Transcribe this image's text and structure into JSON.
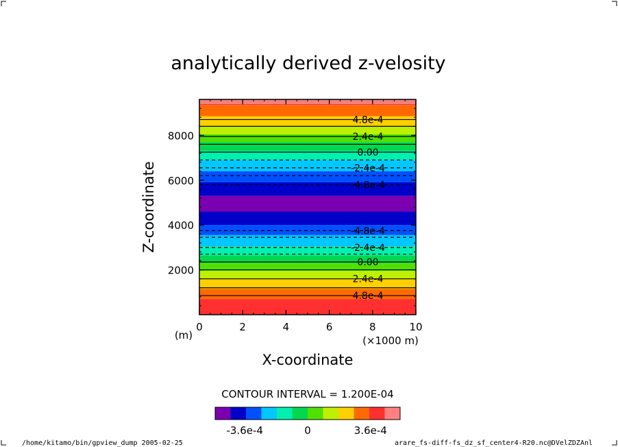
{
  "chart_data": {
    "type": "heatmap",
    "title": "analytically derived z-velosity",
    "xlabel": "X-coordinate",
    "ylabel": "Z-coordinate",
    "x_unit_left": "(m)",
    "x_unit_right": "(×1000 m)",
    "xlim": [
      0,
      10
    ],
    "ylim": [
      0,
      9600
    ],
    "x_ticks": [
      0,
      2,
      4,
      6,
      8,
      10
    ],
    "y_ticks": [
      2000,
      4000,
      6000,
      8000
    ],
    "contour_interval_text": "CONTOUR INTERVAL = 1.200E-04",
    "bands": [
      {
        "z0": 0,
        "z1": 700,
        "color": "#ff3030"
      },
      {
        "z0": 700,
        "z1": 1150,
        "color": "#ff6a00"
      },
      {
        "z0": 1150,
        "z1": 1600,
        "color": "#ffd000"
      },
      {
        "z0": 1600,
        "z1": 1950,
        "color": "#bff000"
      },
      {
        "z0": 1950,
        "z1": 2300,
        "color": "#50e000"
      },
      {
        "z0": 2300,
        "z1": 2650,
        "color": "#00d850"
      },
      {
        "z0": 2650,
        "z1": 3050,
        "color": "#00f0b0"
      },
      {
        "z0": 3050,
        "z1": 3550,
        "color": "#00c8ff"
      },
      {
        "z0": 3550,
        "z1": 4000,
        "color": "#0050ff"
      },
      {
        "z0": 4000,
        "z1": 4600,
        "color": "#0000c8"
      },
      {
        "z0": 4600,
        "z1": 5300,
        "color": "#7a00b0"
      },
      {
        "z0": 5300,
        "z1": 5900,
        "color": "#0000c8"
      },
      {
        "z0": 5900,
        "z1": 6400,
        "color": "#0050ff"
      },
      {
        "z0": 6400,
        "z1": 6900,
        "color": "#00c8ff"
      },
      {
        "z0": 6900,
        "z1": 7300,
        "color": "#00f0b0"
      },
      {
        "z0": 7300,
        "z1": 7700,
        "color": "#00d850"
      },
      {
        "z0": 7700,
        "z1": 8050,
        "color": "#50e000"
      },
      {
        "z0": 8050,
        "z1": 8400,
        "color": "#bff000"
      },
      {
        "z0": 8400,
        "z1": 8850,
        "color": "#ffd000"
      },
      {
        "z0": 8850,
        "z1": 9350,
        "color": "#ff6a00"
      },
      {
        "z0": 9350,
        "z1": 9600,
        "color": "#ff3030"
      }
    ],
    "top_strip_color": "#f08080",
    "contours": [
      {
        "z": 850,
        "dashed": false,
        "label": "4.8e-4"
      },
      {
        "z": 1200,
        "dashed": false,
        "label": ""
      },
      {
        "z": 1600,
        "dashed": false,
        "label": "2.4e-4"
      },
      {
        "z": 2000,
        "dashed": false,
        "label": ""
      },
      {
        "z": 2350,
        "dashed": false,
        "label": "0.00"
      },
      {
        "z": 2700,
        "dashed": true,
        "label": ""
      },
      {
        "z": 3000,
        "dashed": true,
        "label": "-2.4e-4"
      },
      {
        "z": 3450,
        "dashed": true,
        "label": ""
      },
      {
        "z": 3750,
        "dashed": true,
        "label": "-4.8e-4"
      },
      {
        "z": 5800,
        "dashed": true,
        "label": "-4.8e-4"
      },
      {
        "z": 6200,
        "dashed": true,
        "label": ""
      },
      {
        "z": 6550,
        "dashed": true,
        "label": "-2.4e-4"
      },
      {
        "z": 6900,
        "dashed": true,
        "label": ""
      },
      {
        "z": 7250,
        "dashed": false,
        "label": "0.00"
      },
      {
        "z": 7600,
        "dashed": false,
        "label": ""
      },
      {
        "z": 7950,
        "dashed": false,
        "label": "2.4e-4"
      },
      {
        "z": 8400,
        "dashed": false,
        "label": ""
      },
      {
        "z": 8700,
        "dashed": false,
        "label": "4.8e-4"
      }
    ],
    "colorbar": {
      "colors": [
        "#7a00b0",
        "#0000c8",
        "#0050ff",
        "#00c8ff",
        "#00f0b0",
        "#00d850",
        "#50e000",
        "#bff000",
        "#ffd000",
        "#ff6a00",
        "#ff3030",
        "#ff8080"
      ],
      "tick_labels": [
        "-3.6e-4",
        "0",
        "3.6e-4"
      ],
      "tick_fracs": [
        0.16,
        0.5,
        0.84
      ]
    }
  },
  "footer": {
    "left": "/home/kitamo/bin/gpview_dump  2005-02-25",
    "right": "arare_fs-diff-fs_dz_sf_center4-R20.nc@DVelZDZAnl"
  }
}
